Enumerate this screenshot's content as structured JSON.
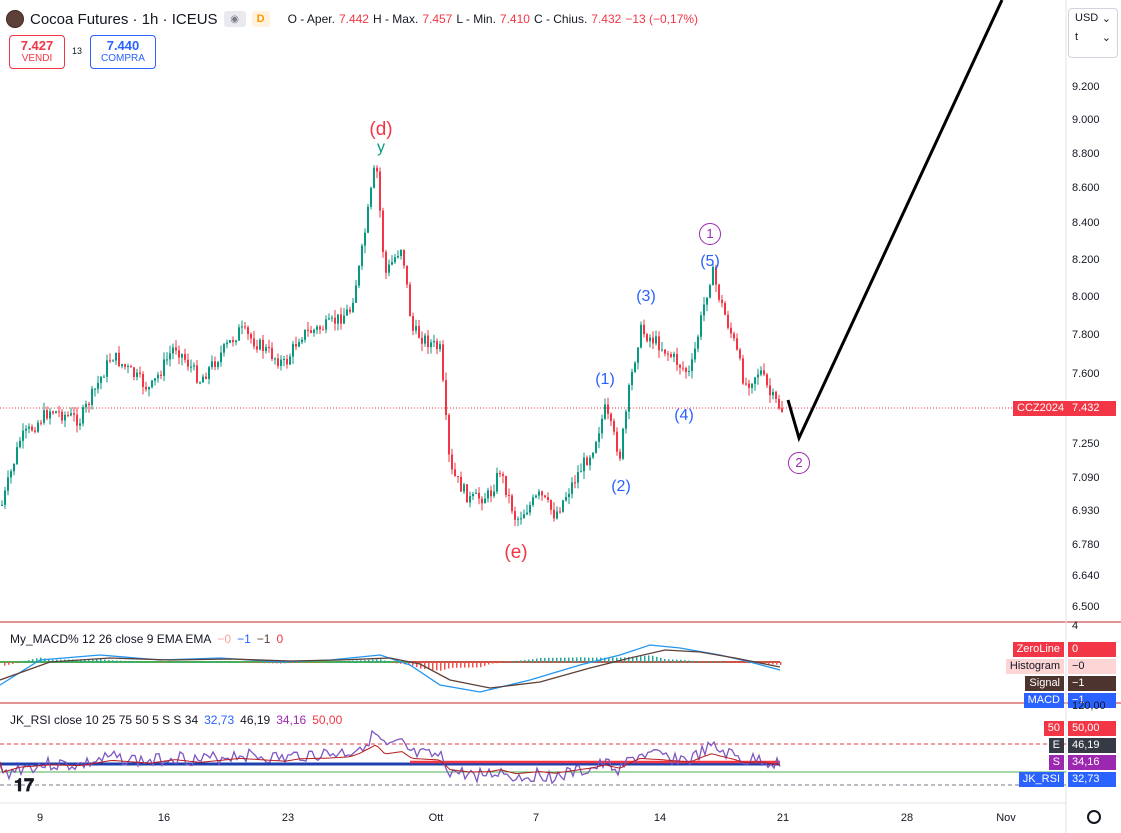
{
  "header": {
    "title": "Cocoa Futures · 1h · ICEUS",
    "badge": "D",
    "ohlc": {
      "open_label": "O - Aper.",
      "open": "7.442",
      "high_label": "H - Max.",
      "high": "7.457",
      "low_label": "L - Min.",
      "low": "7.410",
      "close_label": "C - Chius.",
      "close": "7.432",
      "change": "−13 (−0,17%)"
    }
  },
  "trade": {
    "sell_price": "7.427",
    "sell_label": "VENDI",
    "spread": "13",
    "buy_price": "7.440",
    "buy_label": "COMPRA"
  },
  "currency": {
    "code": "USD",
    "unit": "t"
  },
  "price_axis": [
    "9.200",
    "9.000",
    "8.800",
    "8.600",
    "8.400",
    "8.200",
    "8.000",
    "7.800",
    "7.600",
    "7.250",
    "7.090",
    "6.930",
    "6.780",
    "6.640",
    "6.500"
  ],
  "current_price_tag": {
    "symbol": "CCZ2024",
    "price": "7.432"
  },
  "time_axis": [
    "9",
    "16",
    "23",
    "Ott",
    "7",
    "14",
    "21",
    "28",
    "Nov"
  ],
  "wave_labels": {
    "d": "(d)",
    "y": "y",
    "e": "(e)",
    "w1": "(1)",
    "w2": "(2)",
    "w3": "(3)",
    "w4": "(4)",
    "w5": "(5)",
    "c1": "1",
    "c2": "2"
  },
  "macd": {
    "title": "My_MACD% 12 26 close 9 EMA EMA",
    "v1": "−0",
    "v2": "−1",
    "v3": "−1",
    "v4": "0",
    "scale_top": "4",
    "legend": [
      {
        "label": "ZeroLine",
        "value": "0"
      },
      {
        "label": "Histogram",
        "value": "−0"
      },
      {
        "label": "Signal",
        "value": "−1"
      },
      {
        "label": "MACD",
        "value": "−1"
      }
    ]
  },
  "rsi": {
    "title": "JK_RSI close 10 25 75 50 5 S S 34",
    "v1": "32,73",
    "v2": "46,19",
    "v3": "34,16",
    "v4": "50,00",
    "scale_top": "120,00",
    "legend": [
      {
        "label": "50",
        "value": "50,00"
      },
      {
        "label": "E",
        "value": "46,19"
      },
      {
        "label": "S",
        "value": "34,16"
      },
      {
        "label": "JK_RSI",
        "value": "32,73"
      }
    ]
  },
  "colors": {
    "up": "#089981",
    "down": "#f23645",
    "projection": "#000000",
    "wave_blue": "#2962ff",
    "wave_red": "#f23645",
    "wave_purple": "#9c27b0"
  }
}
